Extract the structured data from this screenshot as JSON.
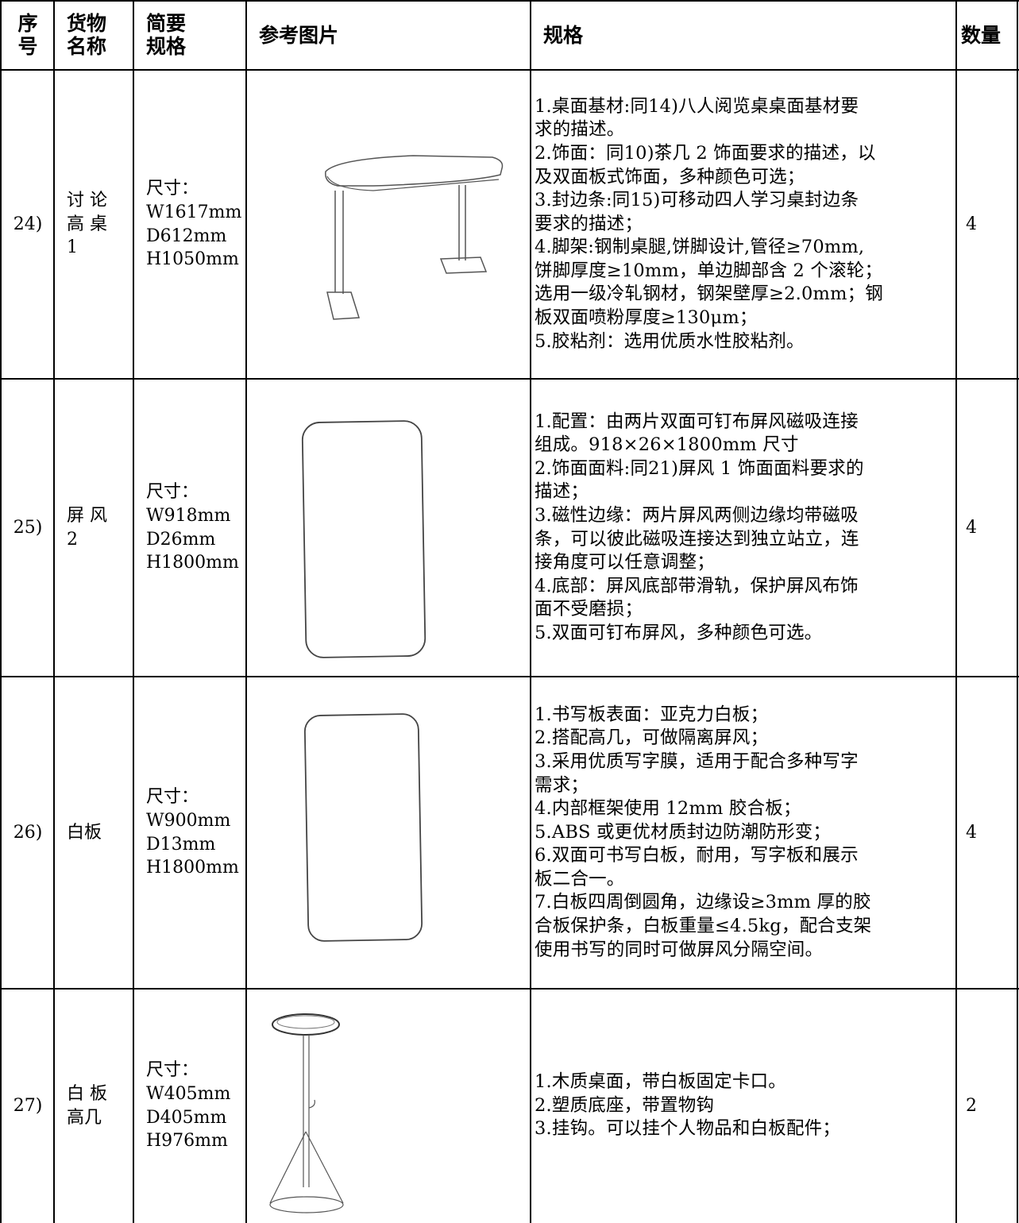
{
  "table": {
    "header": [
      [
        "序",
        "号"
      ],
      [
        "货物",
        "名称"
      ],
      [
        "简要",
        "规格"
      ],
      [
        "参考图片"
      ],
      [
        "规格"
      ],
      [
        "数量"
      ]
    ],
    "rows": [
      {
        "index": "24)",
        "name": [
          "讨 论",
          "高 桌",
          "1"
        ],
        "size": [
          "尺寸：",
          "W1617mm",
          "D612mm",
          "H1050mm"
        ],
        "spec": [
          "1.桌面基材:同14)八人阅览桌桌面基材要",
          "求的描述。",
          "2.饰面：同10)茶几 2 饰面要求的描述，以",
          "及双面板式饰面，多种颜色可选；",
          "3.封边条:同15)可移动四人学习桌封边条",
          "要求的描述；",
          "4.脚架:钢制桌腿,饼脚设计,管径≥70mm,",
          "饼脚厚度≥10mm，单边脚部含 2 个滚轮；",
          "选用一级冷轧钢材，钢架壁厚≥2.0mm；钢",
          "板双面喷粉厚度≥130μm；",
          "5.胶粘剂：选用优质水性胶粘剂。"
        ],
        "qty": "4"
      },
      {
        "index": "25)",
        "name": [
          "屏 风",
          "2"
        ],
        "size": [
          "尺寸：",
          "W918mm",
          "D26mm",
          "H1800mm"
        ],
        "spec": [
          "1.配置：由两片双面可钉布屏风磁吸连接",
          "组成。918×26×1800mm 尺寸",
          "2.饰面面料:同21)屏风 1 饰面面料要求的",
          "描述；",
          "3.磁性边缘：两片屏风两侧边缘均带磁吸",
          "条，可以彼此磁吸连接达到独立站立，连",
          "接角度可以任意调整；",
          "4.底部：屏风底部带滑轨，保护屏风布饰",
          "面不受磨损；",
          "5.双面可钉布屏风，多种颜色可选。"
        ],
        "qty": "4"
      },
      {
        "index": "26)",
        "name": [
          "白板"
        ],
        "size": [
          "尺寸：",
          "W900mm",
          "D13mm",
          "H1800mm"
        ],
        "spec": [
          "1.书写板表面：亚克力白板；",
          "2.搭配高几，可做隔离屏风；",
          "3.采用优质写字膜，适用于配合多种写字",
          "需求；",
          "4.内部框架使用 12mm 胶合板；",
          "5.ABS 或更优材质封边防潮防形变；",
          "6.双面可书写白板，耐用，写字板和展示",
          "板二合一。",
          "7.白板四周倒圆角，边缘设≥3mm 厚的胶",
          "合板保护条，白板重量≤4.5kg，配合支架",
          "使用书写的同时可做屏风分隔空间。"
        ],
        "qty": "4"
      },
      {
        "index": "27)",
        "name": [
          "白 板",
          "高几"
        ],
        "size": [
          "尺寸：",
          "W405mm",
          "D405mm",
          "H976mm"
        ],
        "spec": [
          "1.木质桌面，带白板固定卡口。",
          "2.塑质底座，带置物钩",
          "3.挂钩。可以挂个人物品和白板配件；"
        ],
        "qty": "2"
      }
    ]
  }
}
